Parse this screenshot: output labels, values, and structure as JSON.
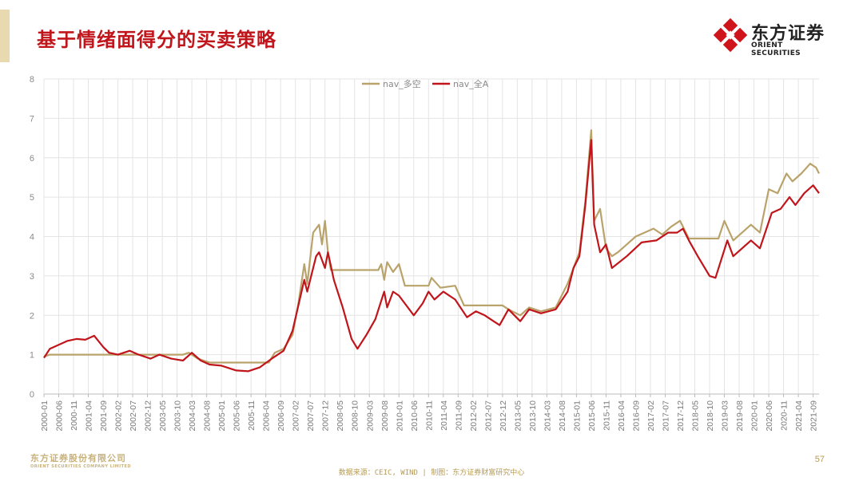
{
  "header": {
    "title": "基于情绪面得分的买卖策略",
    "logo_cn": "东方证券",
    "logo_en": "ORIENT SECURITIES"
  },
  "footer": {
    "logo_cn": "东方证券股份有限公司",
    "logo_en": "ORIENT SECURITIES COMPANY LIMITED",
    "source": "数据来源：CEIC, WIND  | 制图：东方证券财富研究中心",
    "page_number": "57"
  },
  "colors": {
    "title": "#c0151b",
    "series_long_short": "#b9a36a",
    "series_all_a": "#c0151b",
    "gold": "#b79b55"
  },
  "chart_data": {
    "type": "line",
    "xlabel": "",
    "ylabel": "",
    "ylim": [
      0,
      8
    ],
    "yticks": [
      0,
      1,
      2,
      3,
      4,
      5,
      6,
      7,
      8
    ],
    "grid": true,
    "legend": "top-center",
    "xtick_labels": [
      "2000-01",
      "2000-06",
      "2000-11",
      "2001-04",
      "2001-09",
      "2002-02",
      "2002-07",
      "2002-12",
      "2003-05",
      "2003-10",
      "2004-03",
      "2004-08",
      "2005-01",
      "2005-06",
      "2005-11",
      "2006-04",
      "2006-09",
      "2007-02",
      "2007-07",
      "2007-12",
      "2008-05",
      "2008-10",
      "2009-03",
      "2009-08",
      "2010-01",
      "2010-06",
      "2010-11",
      "2011-04",
      "2011-09",
      "2012-02",
      "2012-07",
      "2012-12",
      "2013-05",
      "2013-10",
      "2014-03",
      "2014-08",
      "2015-01",
      "2015-06",
      "2015-11",
      "2016-04",
      "2016-09",
      "2017-02",
      "2017-07",
      "2017-12",
      "2018-05",
      "2018-10",
      "2019-03",
      "2019-08",
      "2020-01",
      "2020-06",
      "2020-11",
      "2021-04",
      "2021-09"
    ],
    "series": [
      {
        "name": "nav_多空",
        "color": "#b9a36a",
        "points": [
          [
            "2000-01",
            0.95
          ],
          [
            "2000-03",
            1.0
          ],
          [
            "2003-12",
            1.0
          ],
          [
            "2004-02",
            1.05
          ],
          [
            "2004-05",
            0.9
          ],
          [
            "2004-09",
            0.8
          ],
          [
            "2006-05",
            0.8
          ],
          [
            "2006-07",
            1.05
          ],
          [
            "2006-10",
            1.15
          ],
          [
            "2007-01",
            1.5
          ],
          [
            "2007-03",
            2.3
          ],
          [
            "2007-05",
            3.3
          ],
          [
            "2007-06",
            2.8
          ],
          [
            "2007-08",
            4.1
          ],
          [
            "2007-10",
            4.3
          ],
          [
            "2007-11",
            3.8
          ],
          [
            "2007-12",
            4.4
          ],
          [
            "2008-01",
            3.6
          ],
          [
            "2008-02",
            3.15
          ],
          [
            "2009-06",
            3.15
          ],
          [
            "2009-07",
            3.3
          ],
          [
            "2009-08",
            2.9
          ],
          [
            "2009-09",
            3.35
          ],
          [
            "2009-11",
            3.1
          ],
          [
            "2010-01",
            3.3
          ],
          [
            "2010-03",
            2.75
          ],
          [
            "2010-11",
            2.75
          ],
          [
            "2010-12",
            2.95
          ],
          [
            "2011-03",
            2.7
          ],
          [
            "2011-08",
            2.75
          ],
          [
            "2011-11",
            2.25
          ],
          [
            "2012-12",
            2.25
          ],
          [
            "2013-02",
            2.15
          ],
          [
            "2013-06",
            2.0
          ],
          [
            "2013-09",
            2.2
          ],
          [
            "2014-01",
            2.1
          ],
          [
            "2014-06",
            2.2
          ],
          [
            "2014-10",
            2.8
          ],
          [
            "2014-12",
            3.2
          ],
          [
            "2015-02",
            3.6
          ],
          [
            "2015-04",
            4.9
          ],
          [
            "2015-06",
            6.7
          ],
          [
            "2015-07",
            4.4
          ],
          [
            "2015-09",
            4.7
          ],
          [
            "2015-11",
            3.7
          ],
          [
            "2016-01",
            3.5
          ],
          [
            "2016-03",
            3.6
          ],
          [
            "2016-06",
            3.8
          ],
          [
            "2016-09",
            4.0
          ],
          [
            "2016-12",
            4.1
          ],
          [
            "2017-03",
            4.2
          ],
          [
            "2017-06",
            4.05
          ],
          [
            "2017-09",
            4.25
          ],
          [
            "2017-12",
            4.4
          ],
          [
            "2018-03",
            3.95
          ],
          [
            "2018-06",
            3.95
          ],
          [
            "2019-01",
            3.95
          ],
          [
            "2019-03",
            4.4
          ],
          [
            "2019-06",
            3.9
          ],
          [
            "2019-09",
            4.1
          ],
          [
            "2019-12",
            4.3
          ],
          [
            "2020-03",
            4.1
          ],
          [
            "2020-06",
            5.2
          ],
          [
            "2020-09",
            5.1
          ],
          [
            "2020-12",
            5.6
          ],
          [
            "2021-02",
            5.4
          ],
          [
            "2021-05",
            5.6
          ],
          [
            "2021-08",
            5.85
          ],
          [
            "2021-10",
            5.75
          ],
          [
            "2021-11",
            5.6
          ]
        ]
      },
      {
        "name": "nav_全A",
        "color": "#c0151b",
        "points": [
          [
            "2000-01",
            0.92
          ],
          [
            "2000-03",
            1.15
          ],
          [
            "2000-06",
            1.25
          ],
          [
            "2000-09",
            1.35
          ],
          [
            "2000-12",
            1.4
          ],
          [
            "2001-03",
            1.38
          ],
          [
            "2001-06",
            1.48
          ],
          [
            "2001-09",
            1.2
          ],
          [
            "2001-11",
            1.05
          ],
          [
            "2002-02",
            1.0
          ],
          [
            "2002-06",
            1.1
          ],
          [
            "2002-09",
            1.0
          ],
          [
            "2003-01",
            0.9
          ],
          [
            "2003-04",
            1.0
          ],
          [
            "2003-08",
            0.9
          ],
          [
            "2003-12",
            0.85
          ],
          [
            "2004-03",
            1.05
          ],
          [
            "2004-06",
            0.85
          ],
          [
            "2004-09",
            0.75
          ],
          [
            "2005-01",
            0.72
          ],
          [
            "2005-06",
            0.6
          ],
          [
            "2005-10",
            0.58
          ],
          [
            "2006-02",
            0.68
          ],
          [
            "2006-06",
            0.9
          ],
          [
            "2006-10",
            1.1
          ],
          [
            "2007-01",
            1.6
          ],
          [
            "2007-05",
            2.9
          ],
          [
            "2007-06",
            2.6
          ],
          [
            "2007-09",
            3.5
          ],
          [
            "2007-10",
            3.6
          ],
          [
            "2007-12",
            3.2
          ],
          [
            "2008-01",
            3.6
          ],
          [
            "2008-03",
            2.9
          ],
          [
            "2008-06",
            2.2
          ],
          [
            "2008-09",
            1.4
          ],
          [
            "2008-11",
            1.15
          ],
          [
            "2009-02",
            1.5
          ],
          [
            "2009-05",
            1.9
          ],
          [
            "2009-08",
            2.6
          ],
          [
            "2009-09",
            2.2
          ],
          [
            "2009-11",
            2.6
          ],
          [
            "2010-01",
            2.5
          ],
          [
            "2010-06",
            2.0
          ],
          [
            "2010-09",
            2.3
          ],
          [
            "2010-11",
            2.6
          ],
          [
            "2011-01",
            2.4
          ],
          [
            "2011-04",
            2.6
          ],
          [
            "2011-08",
            2.4
          ],
          [
            "2011-12",
            1.95
          ],
          [
            "2012-03",
            2.1
          ],
          [
            "2012-06",
            2.0
          ],
          [
            "2012-09",
            1.85
          ],
          [
            "2012-11",
            1.75
          ],
          [
            "2013-02",
            2.15
          ],
          [
            "2013-06",
            1.85
          ],
          [
            "2013-09",
            2.15
          ],
          [
            "2014-01",
            2.05
          ],
          [
            "2014-06",
            2.15
          ],
          [
            "2014-10",
            2.6
          ],
          [
            "2014-12",
            3.2
          ],
          [
            "2015-02",
            3.5
          ],
          [
            "2015-04",
            4.8
          ],
          [
            "2015-06",
            6.45
          ],
          [
            "2015-07",
            4.3
          ],
          [
            "2015-09",
            3.6
          ],
          [
            "2015-11",
            3.8
          ],
          [
            "2016-01",
            3.2
          ],
          [
            "2016-06",
            3.5
          ],
          [
            "2016-11",
            3.85
          ],
          [
            "2017-04",
            3.9
          ],
          [
            "2017-08",
            4.1
          ],
          [
            "2017-11",
            4.1
          ],
          [
            "2018-01",
            4.2
          ],
          [
            "2018-03",
            3.9
          ],
          [
            "2018-06",
            3.5
          ],
          [
            "2018-10",
            3.0
          ],
          [
            "2018-12",
            2.95
          ],
          [
            "2019-04",
            3.9
          ],
          [
            "2019-06",
            3.5
          ],
          [
            "2019-12",
            3.9
          ],
          [
            "2020-03",
            3.7
          ],
          [
            "2020-07",
            4.6
          ],
          [
            "2020-10",
            4.7
          ],
          [
            "2021-01",
            5.0
          ],
          [
            "2021-03",
            4.8
          ],
          [
            "2021-06",
            5.1
          ],
          [
            "2021-09",
            5.3
          ],
          [
            "2021-11",
            5.1
          ]
        ]
      }
    ]
  }
}
